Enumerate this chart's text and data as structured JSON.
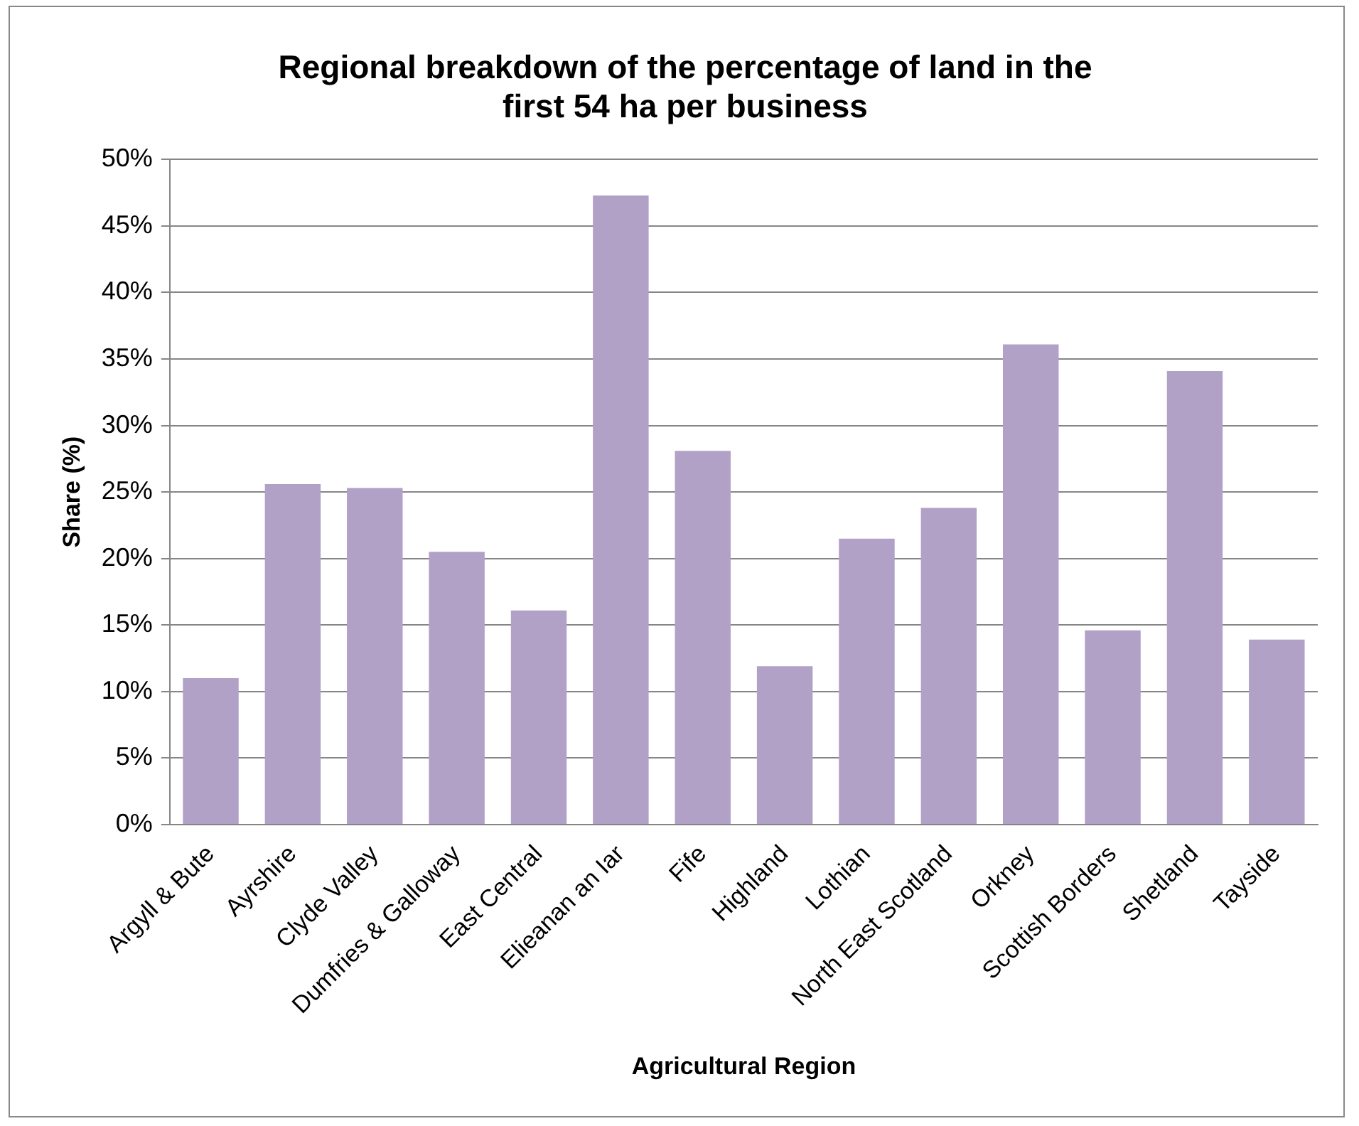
{
  "chart_data": {
    "type": "bar",
    "title": "Regional breakdown of the percentage of land in the first 54 ha per business",
    "xlabel": "Agricultural Region",
    "ylabel": "Share (%)",
    "categories": [
      "Argyll & Bute",
      "Ayrshire",
      "Clyde Valley",
      "Dumfries & Galloway",
      "East Central",
      "Elieanan an Iar",
      "Fife",
      "Highland",
      "Lothian",
      "North East Scotland",
      "Orkney",
      "Scottish Borders",
      "Shetland",
      "Tayside"
    ],
    "values": [
      11.0,
      25.6,
      25.3,
      20.5,
      16.1,
      47.3,
      28.1,
      11.9,
      21.5,
      23.8,
      36.1,
      14.6,
      34.1,
      13.9
    ],
    "color": "#b2a1c7",
    "ylim": [
      0,
      50
    ],
    "yticks": [
      {
        "value": 0,
        "label": "0%"
      },
      {
        "value": 5,
        "label": "5%"
      },
      {
        "value": 10,
        "label": "10%"
      },
      {
        "value": 15,
        "label": "15%"
      },
      {
        "value": 20,
        "label": "20%"
      },
      {
        "value": 25,
        "label": "25%"
      },
      {
        "value": 30,
        "label": "30%"
      },
      {
        "value": 35,
        "label": "35%"
      },
      {
        "value": 40,
        "label": "40%"
      },
      {
        "value": 45,
        "label": "45%"
      },
      {
        "value": 50,
        "label": "50%"
      }
    ],
    "grid": "y"
  }
}
